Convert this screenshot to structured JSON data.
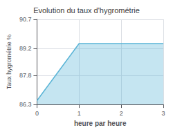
{
  "chart_data": {
    "type": "area",
    "title": "Evolution du taux d'hygrométrie",
    "xlabel": "heure par heure",
    "ylabel": "Taux hygrométrie %",
    "x": [
      0,
      1,
      2,
      3
    ],
    "values": [
      86.5,
      89.45,
      89.45,
      89.45
    ],
    "xlim": [
      0,
      3
    ],
    "ylim": [
      86.3,
      90.7
    ],
    "xticks": [
      0,
      1,
      2,
      3
    ],
    "yticks": [
      86.3,
      87.8,
      89.2,
      90.7
    ],
    "color": "#5ab4d6",
    "grid": true
  }
}
